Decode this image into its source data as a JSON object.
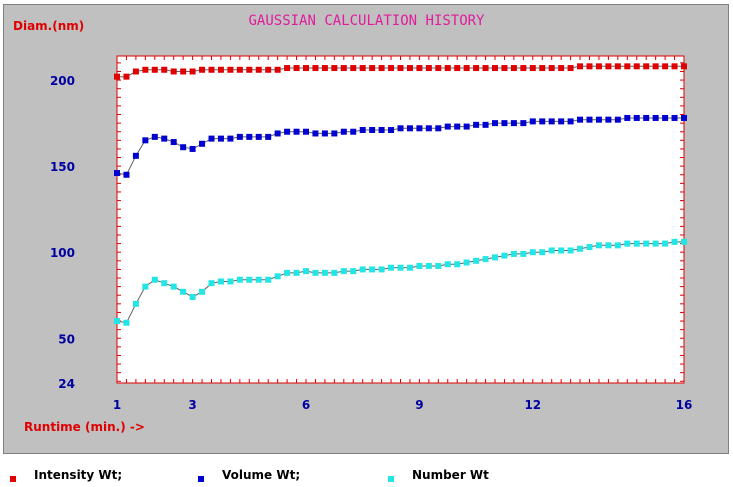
{
  "chart_data": {
    "type": "line",
    "title": "GAUSSIAN CALCULATION HISTORY",
    "ylabel": "Diam.(nm)",
    "xlabel": "Runtime (min.) ->",
    "xlim": [
      1,
      16
    ],
    "ylim": [
      24,
      214
    ],
    "x_ticks": [
      1,
      3,
      6,
      9,
      12,
      16
    ],
    "y_ticks": [
      24,
      50,
      100,
      150,
      200
    ],
    "grid": false,
    "legend_position": "bottom",
    "x": [
      1.0,
      1.25,
      1.5,
      1.75,
      2.0,
      2.25,
      2.5,
      2.75,
      3.0,
      3.25,
      3.5,
      3.75,
      4.0,
      4.25,
      4.5,
      4.75,
      5.0,
      5.25,
      5.5,
      5.75,
      6.0,
      6.25,
      6.5,
      6.75,
      7.0,
      7.25,
      7.5,
      7.75,
      8.0,
      8.25,
      8.5,
      8.75,
      9.0,
      9.25,
      9.5,
      9.75,
      10.0,
      10.25,
      10.5,
      10.75,
      11.0,
      11.25,
      11.5,
      11.75,
      12.0,
      12.25,
      12.5,
      12.75,
      13.0,
      13.25,
      13.5,
      13.75,
      14.0,
      14.25,
      14.5,
      14.75,
      15.0,
      15.25,
      15.5,
      15.75,
      16.0
    ],
    "series": [
      {
        "name": "Intensity Wt;",
        "color": "#e00000",
        "values": [
          202,
          202,
          205,
          206,
          206,
          206,
          205,
          205,
          205,
          206,
          206,
          206,
          206,
          206,
          206,
          206,
          206,
          206,
          207,
          207,
          207,
          207,
          207,
          207,
          207,
          207,
          207,
          207,
          207,
          207,
          207,
          207,
          207,
          207,
          207,
          207,
          207,
          207,
          207,
          207,
          207,
          207,
          207,
          207,
          207,
          207,
          207,
          207,
          207,
          208,
          208,
          208,
          208,
          208,
          208,
          208,
          208,
          208,
          208,
          208,
          208
        ]
      },
      {
        "name": "Volume Wt;",
        "color": "#0000d0",
        "values": [
          146,
          145,
          156,
          165,
          167,
          166,
          164,
          161,
          160,
          163,
          166,
          166,
          166,
          167,
          167,
          167,
          167,
          169,
          170,
          170,
          170,
          169,
          169,
          169,
          170,
          170,
          171,
          171,
          171,
          171,
          172,
          172,
          172,
          172,
          172,
          173,
          173,
          173,
          174,
          174,
          175,
          175,
          175,
          175,
          176,
          176,
          176,
          176,
          176,
          177,
          177,
          177,
          177,
          177,
          178,
          178,
          178,
          178,
          178,
          178,
          178
        ]
      },
      {
        "name": "Number Wt",
        "color": "#22e6e6",
        "values": [
          60,
          59,
          70,
          80,
          84,
          82,
          80,
          77,
          74,
          77,
          82,
          83,
          83,
          84,
          84,
          84,
          84,
          86,
          88,
          88,
          89,
          88,
          88,
          88,
          89,
          89,
          90,
          90,
          90,
          91,
          91,
          91,
          92,
          92,
          92,
          93,
          93,
          94,
          95,
          96,
          97,
          98,
          99,
          99,
          100,
          100,
          101,
          101,
          101,
          102,
          103,
          104,
          104,
          104,
          105,
          105,
          105,
          105,
          105,
          106,
          106
        ]
      }
    ]
  }
}
